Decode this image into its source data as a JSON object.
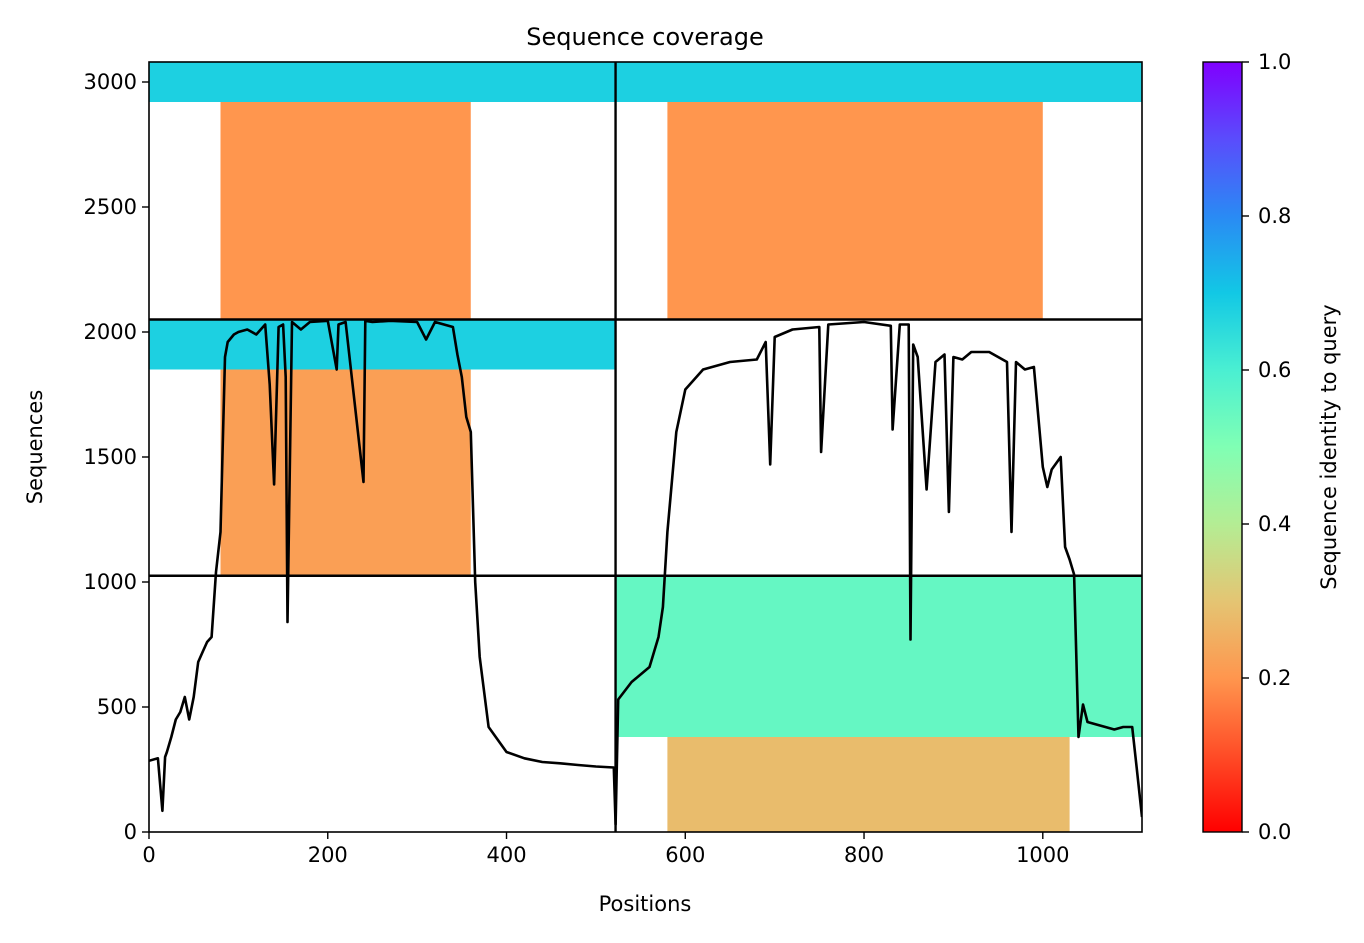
{
  "chart_data": {
    "type": "heatmap",
    "title": "Sequence coverage",
    "xlabel": "Positions",
    "ylabel": "Sequences",
    "xlim": [
      0,
      1111
    ],
    "ylim": [
      0,
      3080
    ],
    "x_ticks": [
      0,
      200,
      400,
      600,
      800,
      1000
    ],
    "y_ticks": [
      0,
      500,
      1000,
      1500,
      2000,
      2500,
      3000
    ],
    "grid": false,
    "colorbar": {
      "label": "Sequence identity to query",
      "range": [
        0,
        1
      ],
      "ticks": [
        "0.0",
        "0.2",
        "0.4",
        "0.6",
        "0.8",
        "1.0"
      ],
      "colormap": "rainbow"
    },
    "chain_boundary_x": 522,
    "block_boundaries_y": [
      1025,
      2050
    ],
    "msa_blocks": [
      {
        "x_range": [
          0,
          522
        ],
        "y_range": [
          2050,
          3080
        ],
        "bands": [
          {
            "y": [
              2920,
              3080
            ],
            "x": [
              0,
              522
            ],
            "identity": 0.68
          },
          {
            "y": [
              2050,
              2920
            ],
            "x": [
              80,
              360
            ],
            "identity": 0.2
          }
        ]
      },
      {
        "x_range": [
          522,
          1111
        ],
        "y_range": [
          2050,
          3080
        ],
        "bands": [
          {
            "y": [
              2920,
              3080
            ],
            "x": [
              522,
              1111
            ],
            "identity": 0.68
          },
          {
            "y": [
              2050,
              2920
            ],
            "x": [
              580,
              1000
            ],
            "identity": 0.2
          }
        ]
      },
      {
        "x_range": [
          0,
          522
        ],
        "y_range": [
          1025,
          2050
        ],
        "bands": [
          {
            "y": [
              1850,
              2050
            ],
            "x": [
              0,
              522
            ],
            "identity": 0.68
          },
          {
            "y": [
              1025,
              1850
            ],
            "x": [
              80,
              360
            ],
            "identity": 0.22
          }
        ]
      },
      {
        "x_range": [
          522,
          1111
        ],
        "y_range": [
          0,
          1025
        ],
        "bands": [
          {
            "y": [
              380,
              1025
            ],
            "x": [
              522,
              1111
            ],
            "identity": 0.55
          },
          {
            "y": [
              0,
              380
            ],
            "x": [
              580,
              1030
            ],
            "identity": 0.28
          }
        ]
      }
    ],
    "coverage_series": {
      "name": "",
      "x": [
        0,
        10,
        15,
        18,
        20,
        25,
        30,
        35,
        40,
        45,
        50,
        55,
        60,
        65,
        70,
        75,
        80,
        85,
        88,
        95,
        100,
        110,
        120,
        130,
        135,
        140,
        145,
        150,
        153,
        155,
        160,
        170,
        180,
        200,
        210,
        212,
        220,
        240,
        242,
        250,
        270,
        300,
        310,
        320,
        340,
        345,
        350,
        355,
        360,
        365,
        370,
        380,
        400,
        420,
        440,
        460,
        480,
        500,
        520,
        522,
        525,
        540,
        560,
        570,
        575,
        580,
        590,
        600,
        620,
        650,
        680,
        690,
        695,
        700,
        720,
        750,
        752,
        760,
        800,
        830,
        832,
        840,
        850,
        852,
        855,
        860,
        870,
        880,
        890,
        895,
        900,
        910,
        920,
        940,
        960,
        965,
        970,
        980,
        990,
        1000,
        1005,
        1010,
        1020,
        1025,
        1030,
        1035,
        1040,
        1045,
        1050,
        1060,
        1070,
        1080,
        1090,
        1100,
        1105,
        1111
      ],
      "y": [
        285,
        295,
        85,
        300,
        320,
        380,
        450,
        480,
        540,
        450,
        540,
        680,
        720,
        760,
        780,
        1040,
        1200,
        1900,
        1960,
        1990,
        2000,
        2010,
        1990,
        2030,
        1790,
        1390,
        2020,
        2030,
        1820,
        840,
        2040,
        2010,
        2040,
        2045,
        1850,
        2030,
        2040,
        1400,
        2045,
        2040,
        2045,
        2040,
        1970,
        2040,
        2020,
        1910,
        1820,
        1660,
        1600,
        1000,
        700,
        420,
        320,
        295,
        280,
        275,
        268,
        262,
        258,
        30,
        530,
        600,
        660,
        780,
        900,
        1200,
        1600,
        1770,
        1850,
        1880,
        1890,
        1960,
        1470,
        1980,
        2010,
        2020,
        1520,
        2030,
        2040,
        2025,
        1610,
        2030,
        2030,
        770,
        1950,
        1900,
        1370,
        1880,
        1910,
        1280,
        1900,
        1890,
        1920,
        1920,
        1880,
        1200,
        1880,
        1850,
        1860,
        1460,
        1380,
        1450,
        1500,
        1140,
        1090,
        1030,
        380,
        510,
        440,
        430,
        420,
        410,
        420,
        420,
        260,
        60
      ]
    }
  }
}
